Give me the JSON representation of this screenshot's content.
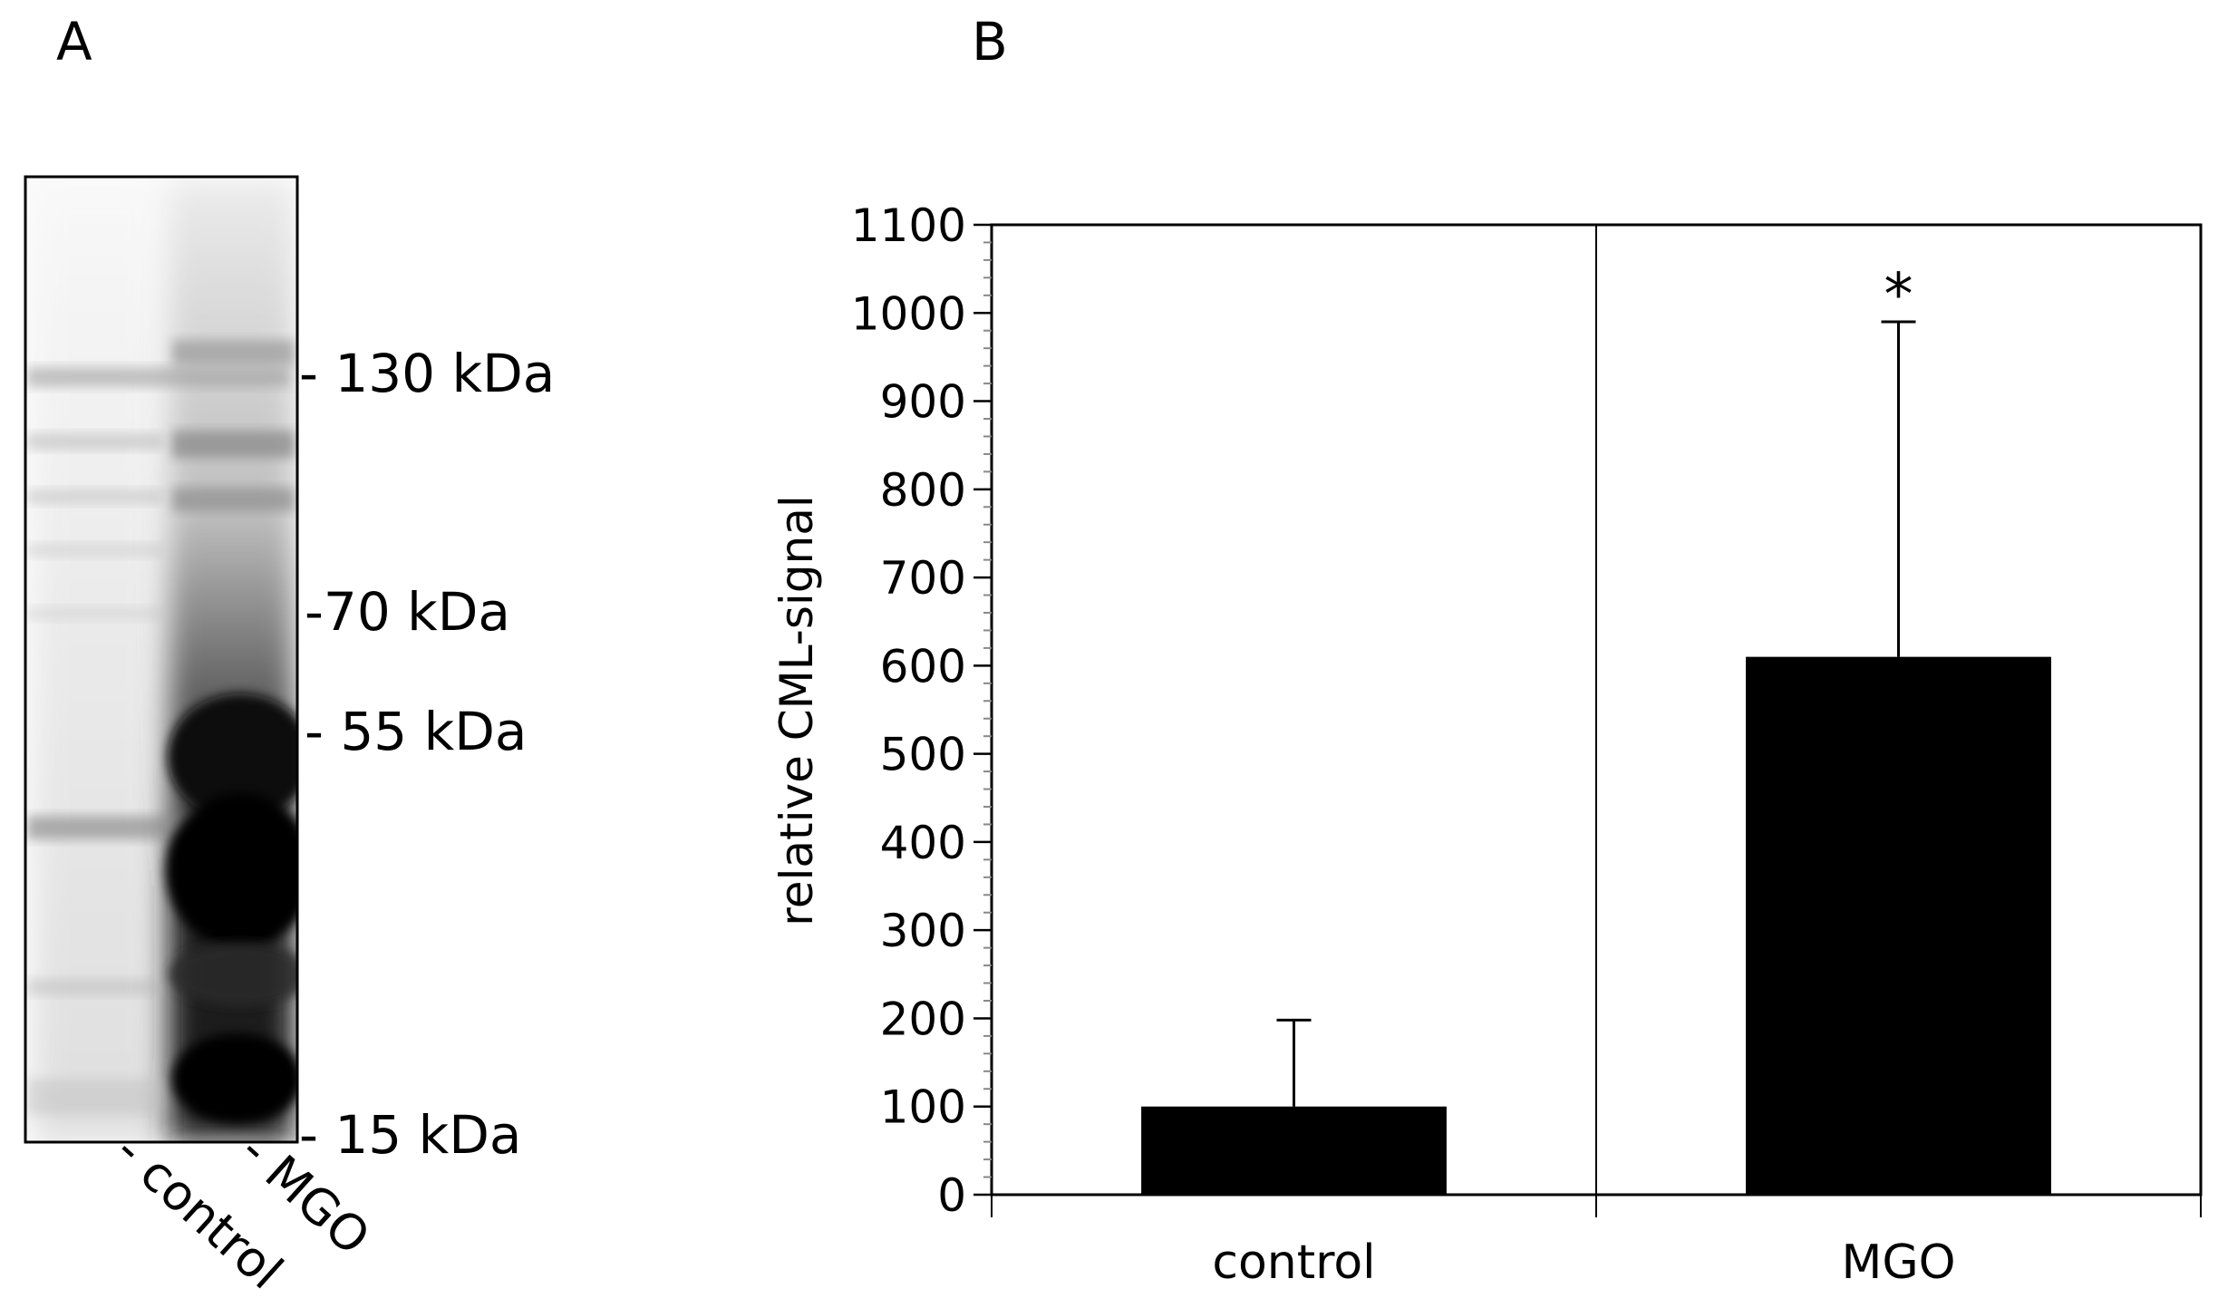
{
  "panel_labels": {
    "a": "A",
    "b": "B"
  },
  "panel_a": {
    "type": "western-blot",
    "markers": [
      {
        "label": "- 130 kDa",
        "kda": 130
      },
      {
        "label": "-70 kDa",
        "kda": 70
      },
      {
        "label": "- 55 kDa",
        "kda": 55
      },
      {
        "label": "- 15 kDa",
        "kda": 15
      }
    ],
    "lanes": [
      {
        "label": "- control"
      },
      {
        "label": "- MGO"
      }
    ]
  },
  "chart_data": {
    "type": "bar",
    "categories": [
      "control",
      "MGO"
    ],
    "values": [
      100,
      610
    ],
    "error": [
      98,
      380
    ],
    "significance": [
      "",
      "*"
    ],
    "title": "",
    "xlabel": "",
    "ylabel": "relative CML-signal",
    "ylim": [
      0,
      1100
    ],
    "yticks": [
      0,
      100,
      200,
      300,
      400,
      500,
      600,
      700,
      800,
      900,
      1000,
      1100
    ],
    "minor_step": 20,
    "bar_color": "#000000",
    "grid": false
  }
}
